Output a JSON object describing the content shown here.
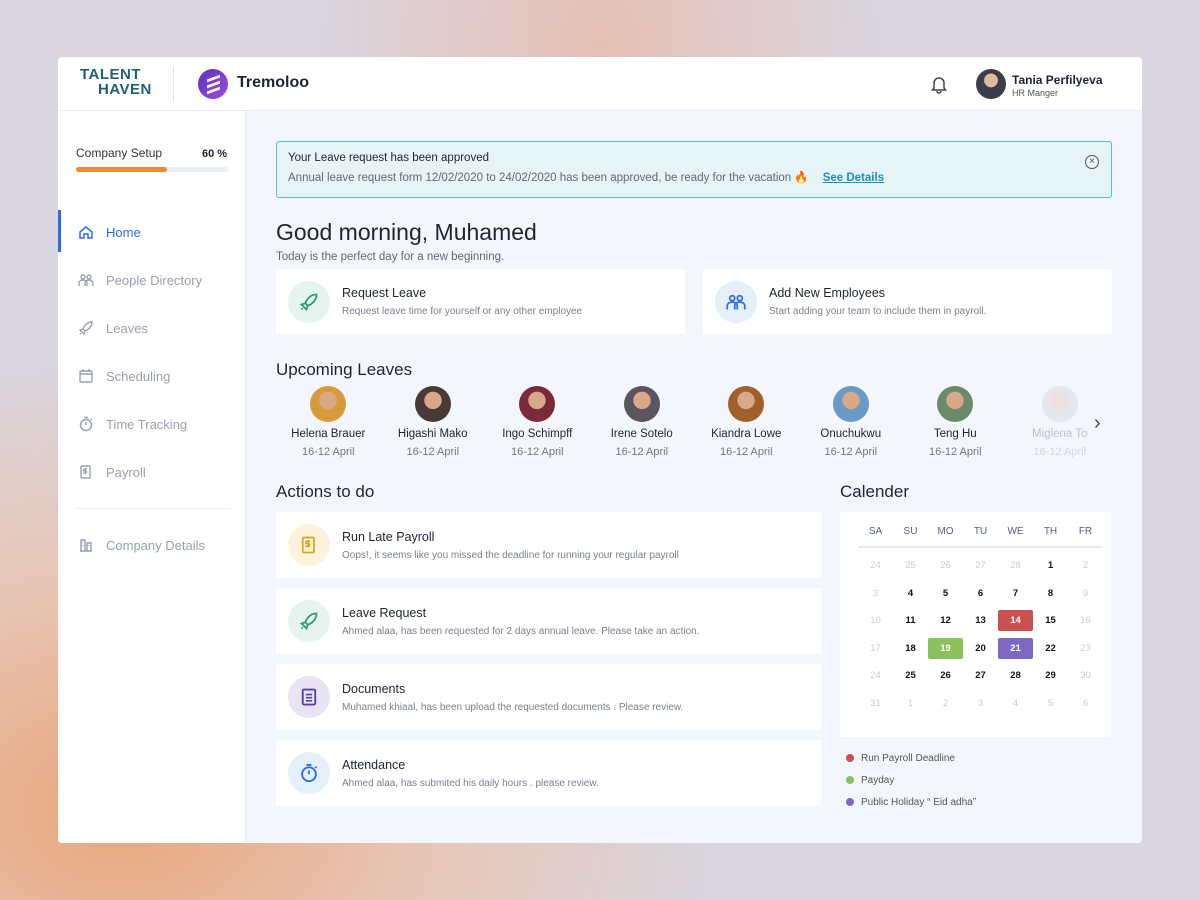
{
  "header": {
    "logo_line1": "TALENT",
    "logo_line2": "HAVEN",
    "brand": "Tremoloo",
    "user_name": "Tania Perfilyeva",
    "user_role": "HR Manger"
  },
  "sidebar": {
    "setup_label": "Company Setup",
    "setup_percent_label": "60 %",
    "setup_progress": 60,
    "items": [
      {
        "label": "Home",
        "icon": "home-icon",
        "active": true
      },
      {
        "label": "People Directory",
        "icon": "people-icon"
      },
      {
        "label": "Leaves",
        "icon": "rocket-icon"
      },
      {
        "label": "Scheduling",
        "icon": "calendar-icon"
      },
      {
        "label": "Time Tracking",
        "icon": "stopwatch-icon"
      },
      {
        "label": "Payroll",
        "icon": "payroll-icon"
      }
    ],
    "footer_item": {
      "label": "Company Details",
      "icon": "building-icon"
    }
  },
  "alert": {
    "title": "Your Leave request has been approved",
    "body": "Annual leave request form 12/02/2020 to 24/02/2020 has been approved, be ready for the vacation 🔥",
    "link": "See Details"
  },
  "greeting": {
    "title": "Good morning, Muhamed",
    "subtitle": "Today is the perfect day for a new beginning."
  },
  "quick_actions": [
    {
      "title": "Request Leave",
      "subtitle": "Request leave time for yourself or any other employee",
      "icon": "rocket-icon"
    },
    {
      "title": "Add New Employees",
      "subtitle": "Start adding your team to include them in payroll.",
      "icon": "people-icon"
    }
  ],
  "upcoming": {
    "title": "Upcoming Leaves",
    "people": [
      {
        "name": "Helena Brauer",
        "date": "16-12 April",
        "color": "#d89a3a"
      },
      {
        "name": "Higashi Mako",
        "date": "16-12 April",
        "color": "#4a3a35"
      },
      {
        "name": "Ingo Schimpff",
        "date": "16-12 April",
        "color": "#7a2a3a"
      },
      {
        "name": "Irene Sotelo",
        "date": "16-12 April",
        "color": "#5a5560"
      },
      {
        "name": "Kiandra Lowe",
        "date": "16-12 April",
        "color": "#a0602a"
      },
      {
        "name": "Onuchukwu",
        "date": "16-12 April",
        "color": "#6a9ac8"
      },
      {
        "name": "Teng Hu",
        "date": "16-12 April",
        "color": "#6a8a6a"
      },
      {
        "name": "Miglena To",
        "date": "16-12 April",
        "color": "#bbbbbb"
      }
    ]
  },
  "actions": {
    "title": "Actions to do",
    "items": [
      {
        "title": "Run Late Payroll",
        "subtitle": "Oops!, it seems like you missed the deadline for running your regular payroll",
        "icon": "payroll-icon",
        "bg": "#fdf3dc",
        "fg": "#d9a520"
      },
      {
        "title": "Leave Request",
        "subtitle": "Ahmed alaa, has been requested for 2 days annual leave. Please take an action.",
        "icon": "rocket-icon",
        "bg": "#e6f4ef",
        "fg": "#2f9a72"
      },
      {
        "title": "Documents",
        "subtitle": "Muhamed khiaal, has been upload the requested documents . Please review.",
        "icon": "document-icon",
        "bg": "#e8e4f5",
        "fg": "#5a3fa8"
      },
      {
        "title": "Attendance",
        "subtitle": "Ahmed alaa, has submited his daily hours . please review.",
        "icon": "stopwatch-icon",
        "bg": "#e6f0fa",
        "fg": "#2e6be6"
      }
    ]
  },
  "calendar": {
    "title": "Calender",
    "weekdays": [
      "SA",
      "SU",
      "MO",
      "TU",
      "WE",
      "TH",
      "FR"
    ],
    "days": [
      [
        "24",
        0
      ],
      [
        "25",
        0
      ],
      [
        "26",
        0
      ],
      [
        "27",
        0
      ],
      [
        "28",
        0
      ],
      [
        "1",
        1
      ],
      [
        "2",
        0
      ],
      [
        "3",
        0
      ],
      [
        "4",
        1
      ],
      [
        "5",
        1
      ],
      [
        "6",
        1
      ],
      [
        "7",
        1
      ],
      [
        "8",
        1
      ],
      [
        "9",
        0
      ],
      [
        "10",
        0
      ],
      [
        "11",
        1
      ],
      [
        "12",
        1
      ],
      [
        "13",
        1
      ],
      [
        "14",
        1,
        "deadline"
      ],
      [
        "15",
        1
      ],
      [
        "16",
        0
      ],
      [
        "17",
        0
      ],
      [
        "18",
        1
      ],
      [
        "19",
        1,
        "payday"
      ],
      [
        "20",
        1
      ],
      [
        "21",
        1,
        "holiday"
      ],
      [
        "22",
        1
      ],
      [
        "23",
        0
      ],
      [
        "24",
        0
      ],
      [
        "25",
        1
      ],
      [
        "26",
        1
      ],
      [
        "27",
        1
      ],
      [
        "28",
        1
      ],
      [
        "29",
        1
      ],
      [
        "30",
        0
      ],
      [
        "31",
        0
      ],
      [
        "1",
        0
      ],
      [
        "2",
        0
      ],
      [
        "3",
        0
      ],
      [
        "4",
        0
      ],
      [
        "5",
        0
      ],
      [
        "6",
        0
      ]
    ],
    "legend": [
      {
        "key": "deadline",
        "label": "Run Payroll Deadline",
        "color": "#c9514f"
      },
      {
        "key": "payday",
        "label": "Payday",
        "color": "#8cc05a"
      },
      {
        "key": "holiday",
        "label": "Public Holiday “ Eid adha”",
        "color": "#7d68c4"
      }
    ]
  }
}
